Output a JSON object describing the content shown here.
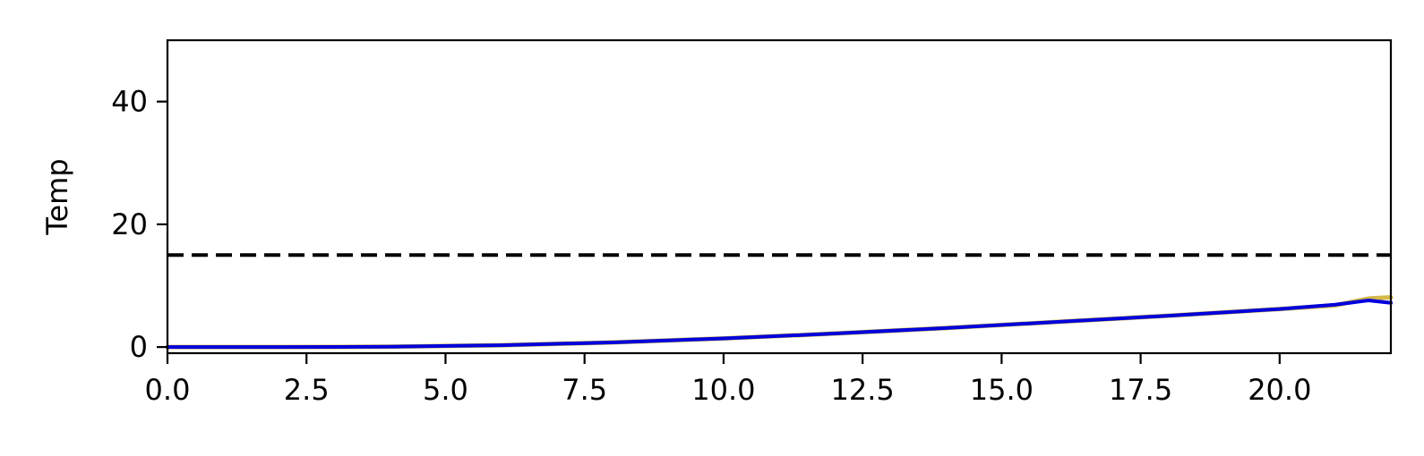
{
  "chart_data": {
    "type": "line",
    "title": "",
    "xlabel": "",
    "ylabel": "Temp",
    "xlim": [
      0,
      22
    ],
    "ylim": [
      -1,
      50
    ],
    "xticks": [
      0,
      2.5,
      5,
      7.5,
      10,
      12.5,
      15,
      17.5,
      20
    ],
    "xtick_labels": [
      "0.0",
      "2.5",
      "5.0",
      "7.5",
      "10.0",
      "12.5",
      "15.0",
      "17.5",
      "20.0"
    ],
    "yticks": [
      0,
      20,
      40
    ],
    "ytick_labels": [
      "0",
      "20",
      "40"
    ],
    "grid": false,
    "legend": "none",
    "series": [
      {
        "color": "#d4b84a",
        "x": [
          0,
          2,
          4,
          6,
          8,
          10,
          12,
          14,
          16,
          18,
          20,
          21,
          21.6,
          22
        ],
        "y": [
          0,
          0,
          0.05,
          0.3,
          0.75,
          1.4,
          2.2,
          3.1,
          4.1,
          5.1,
          6.2,
          6.8,
          7.9,
          8.1
        ]
      },
      {
        "color": "#0000dd",
        "x": [
          0,
          2,
          4,
          6,
          8,
          10,
          12,
          14,
          16,
          18,
          20,
          21,
          21.6,
          22
        ],
        "y": [
          0,
          0,
          0.05,
          0.3,
          0.75,
          1.4,
          2.2,
          3.1,
          4.1,
          5.1,
          6.2,
          6.9,
          7.6,
          7.2
        ]
      }
    ],
    "reference_line": {
      "y": 15,
      "style": "dashed",
      "color": "#000000"
    }
  }
}
